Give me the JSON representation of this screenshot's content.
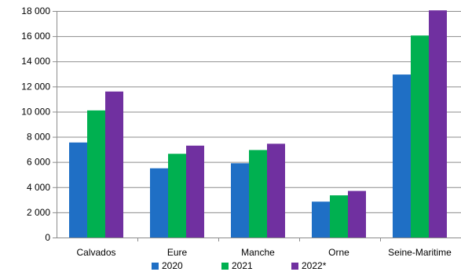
{
  "chart_data": {
    "type": "bar",
    "title": "",
    "xlabel": "",
    "ylabel": "",
    "categories": [
      "Calvados",
      "Eure",
      "Manche",
      "Orne",
      "Seine-Maritime"
    ],
    "series": [
      {
        "name": "2020",
        "color": "#1F6FC5",
        "values": [
          7550,
          5500,
          5900,
          2850,
          12950
        ]
      },
      {
        "name": "2021",
        "color": "#00B050",
        "values": [
          10100,
          6650,
          6950,
          3350,
          16050
        ]
      },
      {
        "name": "2022*",
        "color": "#7030A0",
        "values": [
          11600,
          7300,
          7450,
          3700,
          18050
        ]
      }
    ],
    "ylim": [
      0,
      18000
    ],
    "yticks": [
      {
        "value": 0,
        "label": "0"
      },
      {
        "value": 2000,
        "label": "2 000"
      },
      {
        "value": 4000,
        "label": "4 000"
      },
      {
        "value": 6000,
        "label": "6 000"
      },
      {
        "value": 8000,
        "label": "8 000"
      },
      {
        "value": 10000,
        "label": "10 000"
      },
      {
        "value": 12000,
        "label": "12 000"
      },
      {
        "value": 14000,
        "label": "14 000"
      },
      {
        "value": 16000,
        "label": "16 000"
      },
      {
        "value": 18000,
        "label": "18 000"
      }
    ],
    "grid": true,
    "legend_position": "bottom"
  }
}
